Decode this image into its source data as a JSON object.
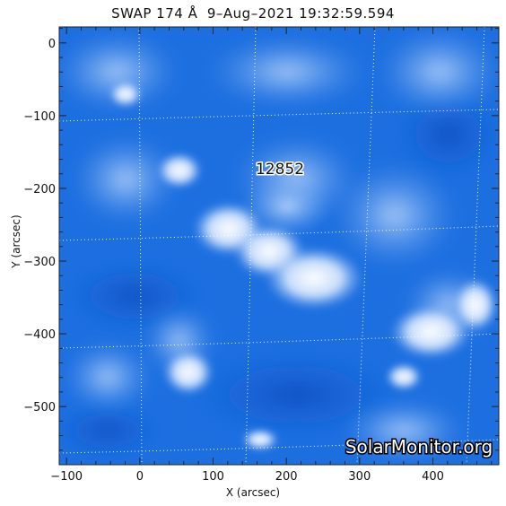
{
  "title": "SWAP 174 Å  9–Aug–2021 19:32:59.594",
  "x_axis": {
    "label": "X (arcsec)",
    "ticks": [
      -100,
      0,
      100,
      200,
      300,
      400
    ],
    "range": [
      -110,
      490
    ]
  },
  "y_axis": {
    "label": "Y (arcsec)",
    "ticks": [
      0,
      -100,
      -200,
      -300,
      -400,
      -500
    ],
    "range": [
      -580,
      22
    ]
  },
  "region_label": "12852",
  "watermark": "SolarMonitor.org",
  "colors": {
    "background_blue": "#1d6fe0",
    "bright": "#ffffff",
    "grid": "#ffffff",
    "text": "#111111"
  }
}
